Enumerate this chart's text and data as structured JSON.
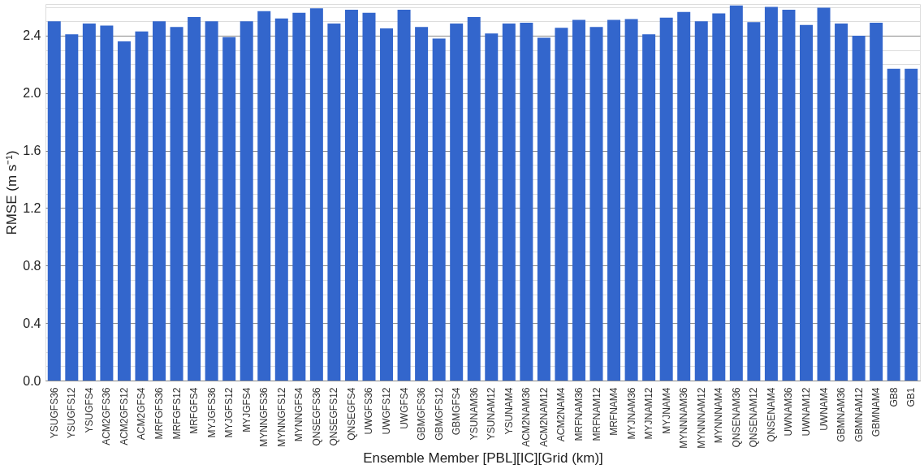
{
  "chart_data": {
    "type": "bar",
    "xlabel": "Ensemble Member [PBL][IC][Grid (km)]",
    "ylabel": "RMSE (m s⁻¹)",
    "categories": [
      "YSUGFS36",
      "YSUGFS12",
      "YSUGFS4",
      "ACM2GFS36",
      "ACM2GFS12",
      "ACM2GFS4",
      "MRFGFS36",
      "MRFGFS12",
      "MRFGFS4",
      "MYJGFS36",
      "MYJGFS12",
      "MYJGFS4",
      "MYNNGFS36",
      "MYNNGFS12",
      "MYNNGFS4",
      "QNSEGFS36",
      "QNSEGFS12",
      "QNSEGFS4",
      "UWGFS36",
      "UWGFS12",
      "UWGFS4",
      "GBMGFS36",
      "GBMGFS12",
      "GBMGFS4",
      "YSUNAM36",
      "YSUNAM12",
      "YSUNAM4",
      "ACM2NAM36",
      "ACM2NAM12",
      "ACM2NAM4",
      "MRFNAM36",
      "MRFNAM12",
      "MRFNAM4",
      "MYJNAM36",
      "MYJNAM12",
      "MYJNAM4",
      "MYNNNAM36",
      "MYNNNAM12",
      "MYNNNAM4",
      "QNSENAM36",
      "QNSENAM12",
      "QNSENAM4",
      "UWNAM36",
      "UWNAM12",
      "UWNAM4",
      "GBMNAM36",
      "GBMNAM12",
      "GBMNAM4",
      "GB8",
      "GB1"
    ],
    "values": [
      2.5,
      2.41,
      2.485,
      2.47,
      2.36,
      2.43,
      2.5,
      2.46,
      2.53,
      2.5,
      2.39,
      2.5,
      2.57,
      2.52,
      2.56,
      2.59,
      2.485,
      2.58,
      2.56,
      2.45,
      2.58,
      2.46,
      2.38,
      2.485,
      2.53,
      2.415,
      2.485,
      2.49,
      2.385,
      2.455,
      2.51,
      2.46,
      2.51,
      2.515,
      2.41,
      2.525,
      2.565,
      2.5,
      2.555,
      2.61,
      2.495,
      2.6,
      2.58,
      2.475,
      2.595,
      2.485,
      2.4,
      2.49,
      2.17,
      2.17
    ],
    "color": "#3366cc",
    "ylim": [
      0,
      2.62
    ],
    "yticks": [
      {
        "value": 0,
        "label": "0.0"
      },
      {
        "value": 0.1,
        "label": null
      },
      {
        "value": 0.2,
        "label": null
      },
      {
        "value": 0.3,
        "label": null
      },
      {
        "value": 0.4,
        "label": "0.4"
      },
      {
        "value": 0.5,
        "label": null
      },
      {
        "value": 0.6,
        "label": null
      },
      {
        "value": 0.7,
        "label": null
      },
      {
        "value": 0.8,
        "label": "0.8"
      },
      {
        "value": 0.9,
        "label": null
      },
      {
        "value": 1.0,
        "label": null
      },
      {
        "value": 1.1,
        "label": null
      },
      {
        "value": 1.2,
        "label": "1.2"
      },
      {
        "value": 1.3,
        "label": null
      },
      {
        "value": 1.4,
        "label": null
      },
      {
        "value": 1.5,
        "label": null
      },
      {
        "value": 1.6,
        "label": "1.6"
      },
      {
        "value": 1.7,
        "label": null
      },
      {
        "value": 1.8,
        "label": null
      },
      {
        "value": 1.9,
        "label": null
      },
      {
        "value": 2.0,
        "label": "2.0"
      },
      {
        "value": 2.1,
        "label": null
      },
      {
        "value": 2.2,
        "label": null
      },
      {
        "value": 2.3,
        "label": null
      },
      {
        "value": 2.4,
        "label": "2.4"
      },
      {
        "value": 2.5,
        "label": null
      },
      {
        "value": 2.6,
        "label": null
      }
    ],
    "grid": "y"
  }
}
